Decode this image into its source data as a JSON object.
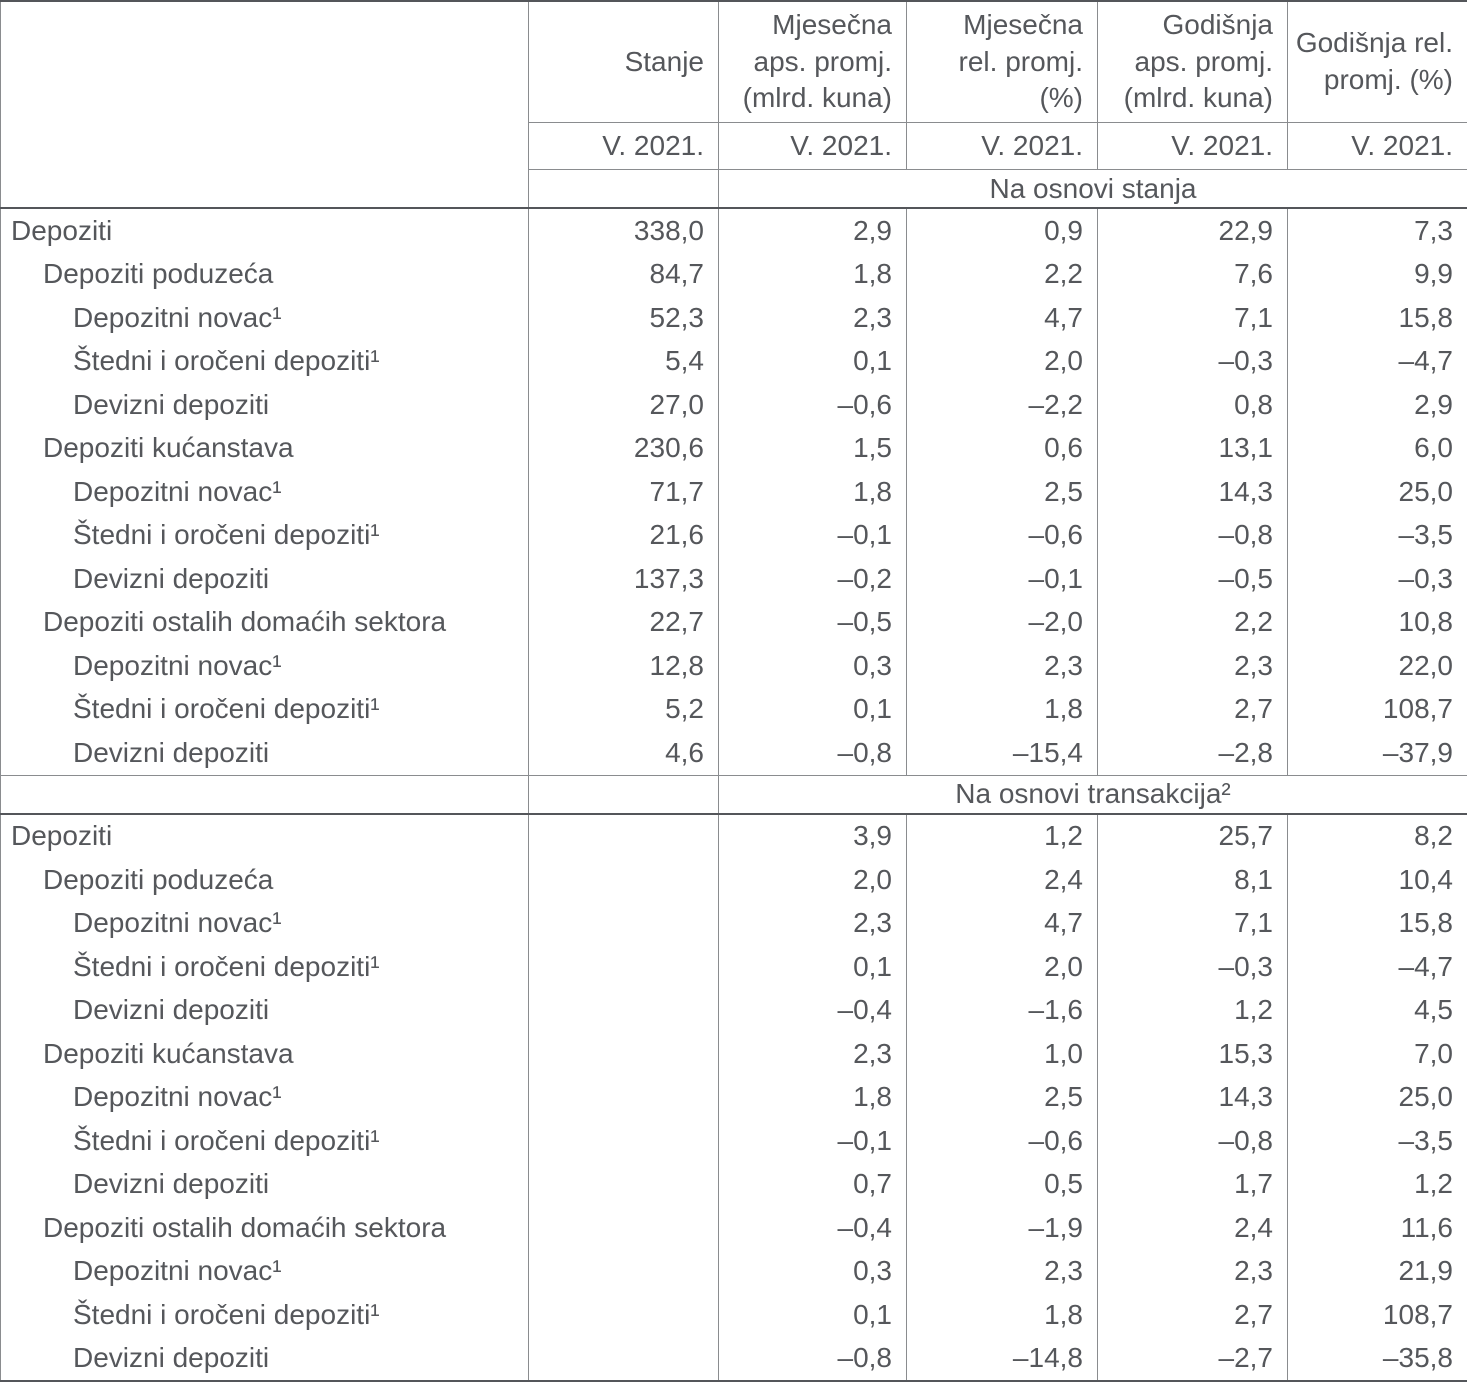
{
  "header": {
    "col_labels": [
      "",
      "Stanje",
      "Mjesečna\naps. promj.\n(mlrd. kuna)",
      "Mjesečna\nrel. promj.\n(%)",
      "Godišnja\naps. promj.\n(mlrd. kuna)",
      "Godišnja rel.\npromj. (%)"
    ],
    "period_labels": [
      "V. 2021.",
      "V. 2021.",
      "V. 2021.",
      "V. 2021.",
      "V. 2021."
    ]
  },
  "sections": [
    {
      "title": "Na osnovi stanja",
      "rows": [
        {
          "label": "Depoziti",
          "indent": 0,
          "values": [
            "338,0",
            "2,9",
            "0,9",
            "22,9",
            "7,3"
          ]
        },
        {
          "label": "Depoziti poduzeća",
          "indent": 1,
          "values": [
            "84,7",
            "1,8",
            "2,2",
            "7,6",
            "9,9"
          ]
        },
        {
          "label": "Depozitni novac¹",
          "indent": 2,
          "values": [
            "52,3",
            "2,3",
            "4,7",
            "7,1",
            "15,8"
          ]
        },
        {
          "label": "Štedni i oročeni depoziti¹",
          "indent": 2,
          "values": [
            "5,4",
            "0,1",
            "2,0",
            "–0,3",
            "–4,7"
          ]
        },
        {
          "label": "Devizni depoziti",
          "indent": 2,
          "values": [
            "27,0",
            "–0,6",
            "–2,2",
            "0,8",
            "2,9"
          ]
        },
        {
          "label": "Depoziti kućanstava",
          "indent": 1,
          "values": [
            "230,6",
            "1,5",
            "0,6",
            "13,1",
            "6,0"
          ]
        },
        {
          "label": "Depozitni novac¹",
          "indent": 2,
          "values": [
            "71,7",
            "1,8",
            "2,5",
            "14,3",
            "25,0"
          ]
        },
        {
          "label": "Štedni i oročeni depoziti¹",
          "indent": 2,
          "values": [
            "21,6",
            "–0,1",
            "–0,6",
            "–0,8",
            "–3,5"
          ]
        },
        {
          "label": "Devizni depoziti",
          "indent": 2,
          "values": [
            "137,3",
            "–0,2",
            "–0,1",
            "–0,5",
            "–0,3"
          ]
        },
        {
          "label": "Depoziti ostalih domaćih sektora",
          "indent": 1,
          "values": [
            "22,7",
            "–0,5",
            "–2,0",
            "2,2",
            "10,8"
          ]
        },
        {
          "label": "Depozitni novac¹",
          "indent": 2,
          "values": [
            "12,8",
            "0,3",
            "2,3",
            "2,3",
            "22,0"
          ]
        },
        {
          "label": "Štedni i oročeni depoziti¹",
          "indent": 2,
          "values": [
            "5,2",
            "0,1",
            "1,8",
            "2,7",
            "108,7"
          ]
        },
        {
          "label": "Devizni depoziti",
          "indent": 2,
          "values": [
            "4,6",
            "–0,8",
            "–15,4",
            "–2,8",
            "–37,9"
          ]
        }
      ]
    },
    {
      "title": "Na osnovi transakcija²",
      "rows": [
        {
          "label": "Depoziti",
          "indent": 0,
          "values": [
            "",
            "3,9",
            "1,2",
            "25,7",
            "8,2"
          ]
        },
        {
          "label": "Depoziti poduzeća",
          "indent": 1,
          "values": [
            "",
            "2,0",
            "2,4",
            "8,1",
            "10,4"
          ]
        },
        {
          "label": "Depozitni novac¹",
          "indent": 2,
          "values": [
            "",
            "2,3",
            "4,7",
            "7,1",
            "15,8"
          ]
        },
        {
          "label": "Štedni i oročeni depoziti¹",
          "indent": 2,
          "values": [
            "",
            "0,1",
            "2,0",
            "–0,3",
            "–4,7"
          ]
        },
        {
          "label": "Devizni depoziti",
          "indent": 2,
          "values": [
            "",
            "–0,4",
            "–1,6",
            "1,2",
            "4,5"
          ]
        },
        {
          "label": "Depoziti kućanstava",
          "indent": 1,
          "values": [
            "",
            "2,3",
            "1,0",
            "15,3",
            "7,0"
          ]
        },
        {
          "label": "Depozitni novac¹",
          "indent": 2,
          "values": [
            "",
            "1,8",
            "2,5",
            "14,3",
            "25,0"
          ]
        },
        {
          "label": "Štedni i oročeni depoziti¹",
          "indent": 2,
          "values": [
            "",
            "–0,1",
            "–0,6",
            "–0,8",
            "–3,5"
          ]
        },
        {
          "label": "Devizni depoziti",
          "indent": 2,
          "values": [
            "",
            "0,7",
            "0,5",
            "1,7",
            "1,2"
          ]
        },
        {
          "label": "Depoziti ostalih domaćih sektora",
          "indent": 1,
          "values": [
            "",
            "–0,4",
            "–1,9",
            "2,4",
            "11,6"
          ]
        },
        {
          "label": "Depozitni novac¹",
          "indent": 2,
          "values": [
            "",
            "0,3",
            "2,3",
            "2,3",
            "21,9"
          ]
        },
        {
          "label": "Štedni i oročeni depoziti¹",
          "indent": 2,
          "values": [
            "",
            "0,1",
            "1,8",
            "2,7",
            "108,7"
          ]
        },
        {
          "label": "Devizni depoziti",
          "indent": 2,
          "values": [
            "",
            "–0,8",
            "–14,8",
            "–2,7",
            "–35,8"
          ]
        }
      ]
    }
  ],
  "colors": {
    "text": "#55575b",
    "thin_border": "#8a8c8f",
    "thick_border": "#54565a",
    "background": "#ffffff"
  }
}
